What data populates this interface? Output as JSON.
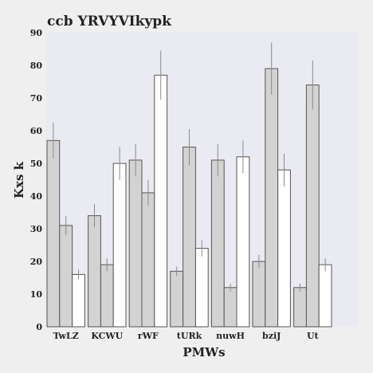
{
  "chart_data": {
    "type": "bar",
    "title": "ccb YRVYVIkypk",
    "xlabel": "PMWs",
    "ylabel": "Kxs k",
    "ylim": [
      0,
      90
    ],
    "yticks": [
      0,
      10,
      20,
      30,
      40,
      50,
      60,
      70,
      80,
      90
    ],
    "categories": [
      "TwLZ",
      "KCWU",
      "rWF",
      "tURk",
      "nuwH",
      "bziJ",
      "Ut"
    ],
    "series": [
      {
        "color": "#d3d3d3",
        "values": [
          57,
          34,
          51,
          17,
          51,
          20,
          12
        ],
        "errors": [
          5.5,
          3.5,
          5,
          1.5,
          5,
          2,
          1.2
        ]
      },
      {
        "color": "#d3d3d3",
        "values": [
          31,
          19,
          41,
          55,
          12,
          79,
          74
        ],
        "errors": [
          3,
          2,
          4,
          5.5,
          1.2,
          8,
          7.5
        ]
      },
      {
        "color": "#ffffff",
        "values": [
          16,
          50,
          77,
          24,
          52,
          48,
          19
        ],
        "errors": [
          1.5,
          5,
          7.5,
          2.5,
          5,
          5,
          2
        ]
      }
    ],
    "grid": false,
    "legend": "none"
  }
}
